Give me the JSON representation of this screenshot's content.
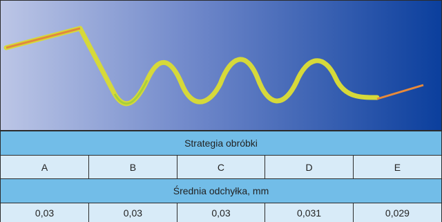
{
  "table": {
    "header": "Strategia obróbki",
    "columns": [
      "A",
      "B",
      "C",
      "D",
      "E"
    ],
    "subheader": "Średnia odchyłka, mm",
    "values": [
      "0,03",
      "0,03",
      "0,03",
      "0,031",
      "0,029"
    ]
  }
}
